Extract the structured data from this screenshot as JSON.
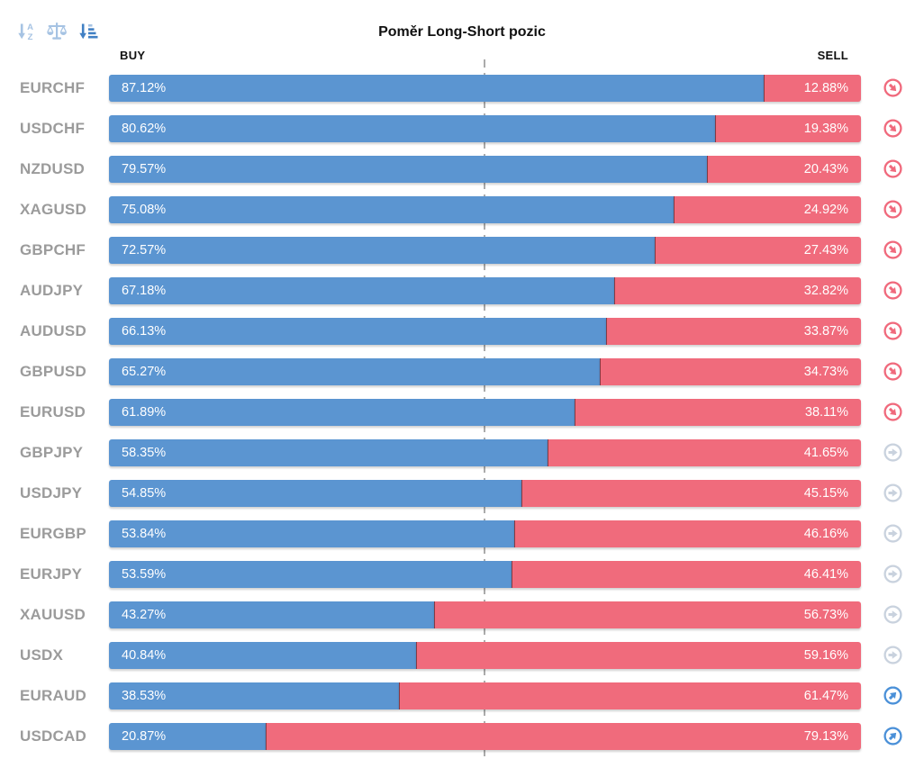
{
  "title": "Poměr Long-Short pozic",
  "header": {
    "buy_label": "BUY",
    "sell_label": "SELL"
  },
  "toolbar": {
    "icons": [
      {
        "name": "sort-alphabetical-icon",
        "active": false
      },
      {
        "name": "balance-scale-icon",
        "active": false
      },
      {
        "name": "sort-amount-icon",
        "active": true
      }
    ]
  },
  "colors": {
    "buy": "#5b95d1",
    "sell": "#f06b7c",
    "sig-sell": "#f0697c",
    "sig-neutral": "#c9d2de",
    "sig-buy": "#4a90d8",
    "label": "#9b9b9b",
    "toolbar-light": "#a6c3e3",
    "toolbar-dark": "#4180c4"
  },
  "chart_data": {
    "type": "bar",
    "orientation": "horizontal-stacked",
    "title": "Poměr Long-Short pozic",
    "categories": [
      "EURCHF",
      "USDCHF",
      "NZDUSD",
      "XAGUSD",
      "GBPCHF",
      "AUDJPY",
      "AUDUSD",
      "GBPUSD",
      "EURUSD",
      "GBPJPY",
      "USDJPY",
      "EURGBP",
      "EURJPY",
      "XAUUSD",
      "USDX",
      "EURAUD",
      "USDCAD"
    ],
    "series": [
      {
        "name": "BUY",
        "color": "#5b95d1",
        "values": [
          87.12,
          80.62,
          79.57,
          75.08,
          72.57,
          67.18,
          66.13,
          65.27,
          61.89,
          58.35,
          54.85,
          53.84,
          53.59,
          43.27,
          40.84,
          38.53,
          20.87
        ]
      },
      {
        "name": "SELL",
        "color": "#f06b7c",
        "values": [
          12.88,
          19.38,
          20.43,
          24.92,
          27.43,
          32.82,
          33.87,
          34.73,
          38.11,
          41.65,
          45.15,
          46.16,
          46.41,
          56.73,
          59.16,
          61.47,
          79.13
        ]
      }
    ],
    "xlim": [
      0,
      100
    ],
    "center_line": 50,
    "grid": false,
    "legend_position": "top (BUY left, SELL right)"
  },
  "rows": [
    {
      "symbol": "EURCHF",
      "buy": 87.12,
      "buy_label": "87.12%",
      "sell": 12.88,
      "sell_label": "12.88%",
      "signal": "sell"
    },
    {
      "symbol": "USDCHF",
      "buy": 80.62,
      "buy_label": "80.62%",
      "sell": 19.38,
      "sell_label": "19.38%",
      "signal": "sell"
    },
    {
      "symbol": "NZDUSD",
      "buy": 79.57,
      "buy_label": "79.57%",
      "sell": 20.43,
      "sell_label": "20.43%",
      "signal": "sell"
    },
    {
      "symbol": "XAGUSD",
      "buy": 75.08,
      "buy_label": "75.08%",
      "sell": 24.92,
      "sell_label": "24.92%",
      "signal": "sell"
    },
    {
      "symbol": "GBPCHF",
      "buy": 72.57,
      "buy_label": "72.57%",
      "sell": 27.43,
      "sell_label": "27.43%",
      "signal": "sell"
    },
    {
      "symbol": "AUDJPY",
      "buy": 67.18,
      "buy_label": "67.18%",
      "sell": 32.82,
      "sell_label": "32.82%",
      "signal": "sell"
    },
    {
      "symbol": "AUDUSD",
      "buy": 66.13,
      "buy_label": "66.13%",
      "sell": 33.87,
      "sell_label": "33.87%",
      "signal": "sell"
    },
    {
      "symbol": "GBPUSD",
      "buy": 65.27,
      "buy_label": "65.27%",
      "sell": 34.73,
      "sell_label": "34.73%",
      "signal": "sell"
    },
    {
      "symbol": "EURUSD",
      "buy": 61.89,
      "buy_label": "61.89%",
      "sell": 38.11,
      "sell_label": "38.11%",
      "signal": "sell"
    },
    {
      "symbol": "GBPJPY",
      "buy": 58.35,
      "buy_label": "58.35%",
      "sell": 41.65,
      "sell_label": "41.65%",
      "signal": "neutral"
    },
    {
      "symbol": "USDJPY",
      "buy": 54.85,
      "buy_label": "54.85%",
      "sell": 45.15,
      "sell_label": "45.15%",
      "signal": "neutral"
    },
    {
      "symbol": "EURGBP",
      "buy": 53.84,
      "buy_label": "53.84%",
      "sell": 46.16,
      "sell_label": "46.16%",
      "signal": "neutral"
    },
    {
      "symbol": "EURJPY",
      "buy": 53.59,
      "buy_label": "53.59%",
      "sell": 46.41,
      "sell_label": "46.41%",
      "signal": "neutral"
    },
    {
      "symbol": "XAUUSD",
      "buy": 43.27,
      "buy_label": "43.27%",
      "sell": 56.73,
      "sell_label": "56.73%",
      "signal": "neutral"
    },
    {
      "symbol": "USDX",
      "buy": 40.84,
      "buy_label": "40.84%",
      "sell": 59.16,
      "sell_label": "59.16%",
      "signal": "neutral"
    },
    {
      "symbol": "EURAUD",
      "buy": 38.53,
      "buy_label": "38.53%",
      "sell": 61.47,
      "sell_label": "61.47%",
      "signal": "buy"
    },
    {
      "symbol": "USDCAD",
      "buy": 20.87,
      "buy_label": "20.87%",
      "sell": 79.13,
      "sell_label": "79.13%",
      "signal": "buy"
    }
  ]
}
